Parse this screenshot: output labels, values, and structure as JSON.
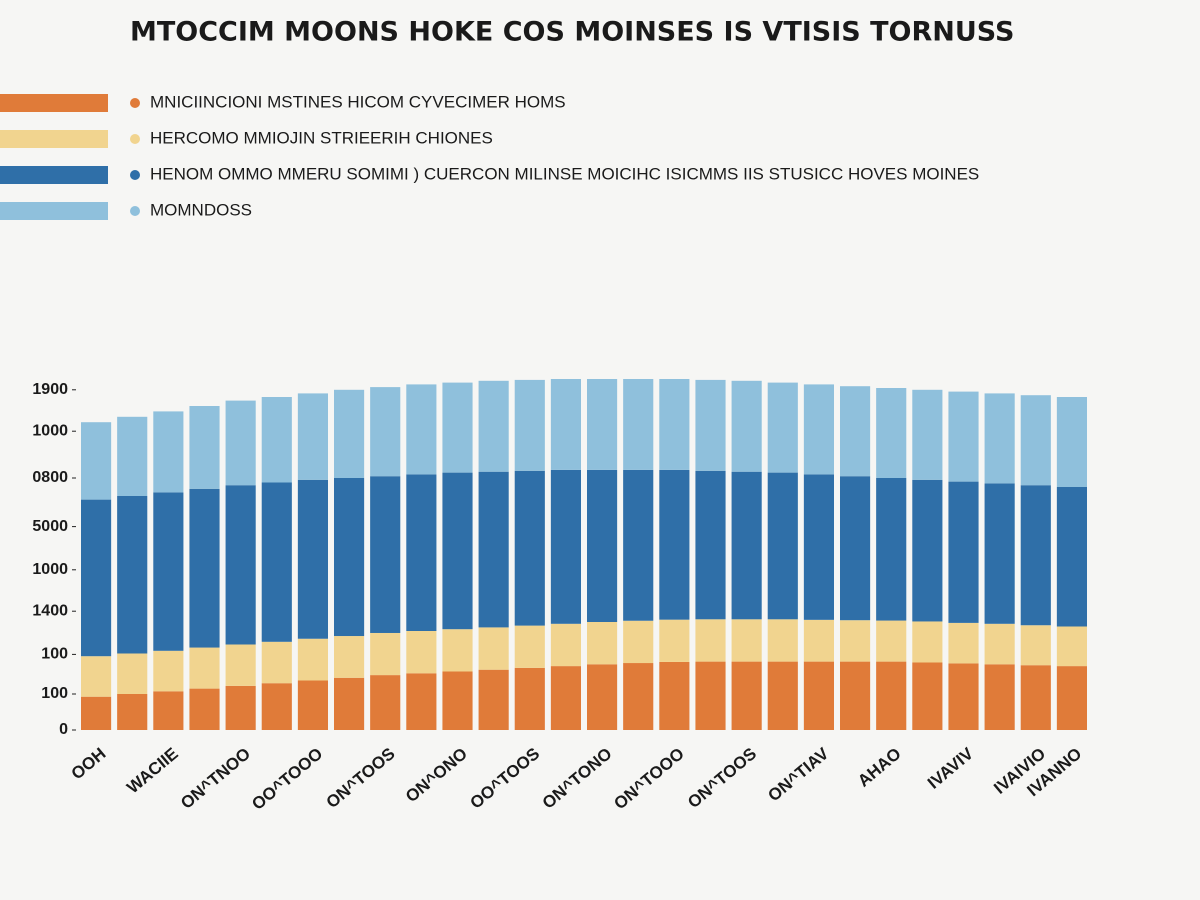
{
  "chart_data": {
    "type": "stacked-bar",
    "title": "MTOCCIM MOONS HOKE COS MOINSES IS VTISIS TORNUSS",
    "categories": [
      "OOH",
      null,
      "WACIIE",
      null,
      "ON^TNOO",
      null,
      "OO^TOOO",
      null,
      "ON^TOOS",
      null,
      "ON^ONO",
      null,
      "OO^TOOS",
      null,
      "ON^TONO",
      null,
      "ON^TOOO",
      null,
      "ON^TOOS",
      null,
      "ON^TIAV",
      null,
      "AHAO",
      null,
      "IVAVIV",
      null,
      "IVAIVIO",
      "IVANNO"
    ],
    "series": [
      {
        "name": "MNICIINCIONI MSTINES HICOM CYVECIMER HOMS",
        "color": "#e07b39",
        "values": [
          185,
          200,
          215,
          230,
          245,
          260,
          275,
          290,
          305,
          315,
          325,
          335,
          345,
          355,
          365,
          372,
          378,
          380,
          380,
          380,
          380,
          380,
          380,
          375,
          370,
          365,
          360,
          355
        ]
      },
      {
        "name": "HERCOMO MMIOJIN STRIEERIH CHIONES",
        "color": "#f1d48f",
        "values": [
          225,
          225,
          225,
          228,
          230,
          230,
          232,
          232,
          234,
          235,
          235,
          235,
          235,
          235,
          235,
          235,
          235,
          235,
          235,
          235,
          232,
          230,
          228,
          228,
          225,
          225,
          222,
          220
        ]
      },
      {
        "name": "HENOM OMMO MMERU SOMIMI ) CUERCON MILINSE MOICIHC ISICMMS IIS STUSICC HOVES MOINES",
        "color": "#2f6fa8",
        "values": [
          870,
          875,
          880,
          882,
          885,
          885,
          883,
          878,
          871,
          870,
          870,
          865,
          860,
          855,
          845,
          838,
          832,
          825,
          820,
          815,
          808,
          800,
          792,
          787,
          785,
          780,
          778,
          775
        ]
      },
      {
        "name": "MOMNDOSS",
        "color": "#8fc0dc",
        "values": [
          430,
          440,
          450,
          460,
          470,
          475,
          480,
          490,
          495,
          500,
          500,
          505,
          505,
          505,
          505,
          505,
          505,
          505,
          505,
          500,
          500,
          500,
          500,
          500,
          500,
          500,
          500,
          500
        ]
      }
    ],
    "ylim": [
      0,
      2000
    ],
    "yticks": [
      0,
      {
        "value": 200,
        "label": "100"
      },
      {
        "value": 420,
        "label": "100"
      },
      {
        "value": 660,
        "label": "1400"
      },
      {
        "value": 890,
        "label": "1000"
      },
      {
        "value": 1130,
        "label": "5000"
      },
      {
        "value": 1400,
        "label": "0800"
      },
      {
        "value": 1660,
        "label": "1000"
      },
      {
        "value": 1890,
        "label": "1900"
      }
    ],
    "grid": false
  }
}
